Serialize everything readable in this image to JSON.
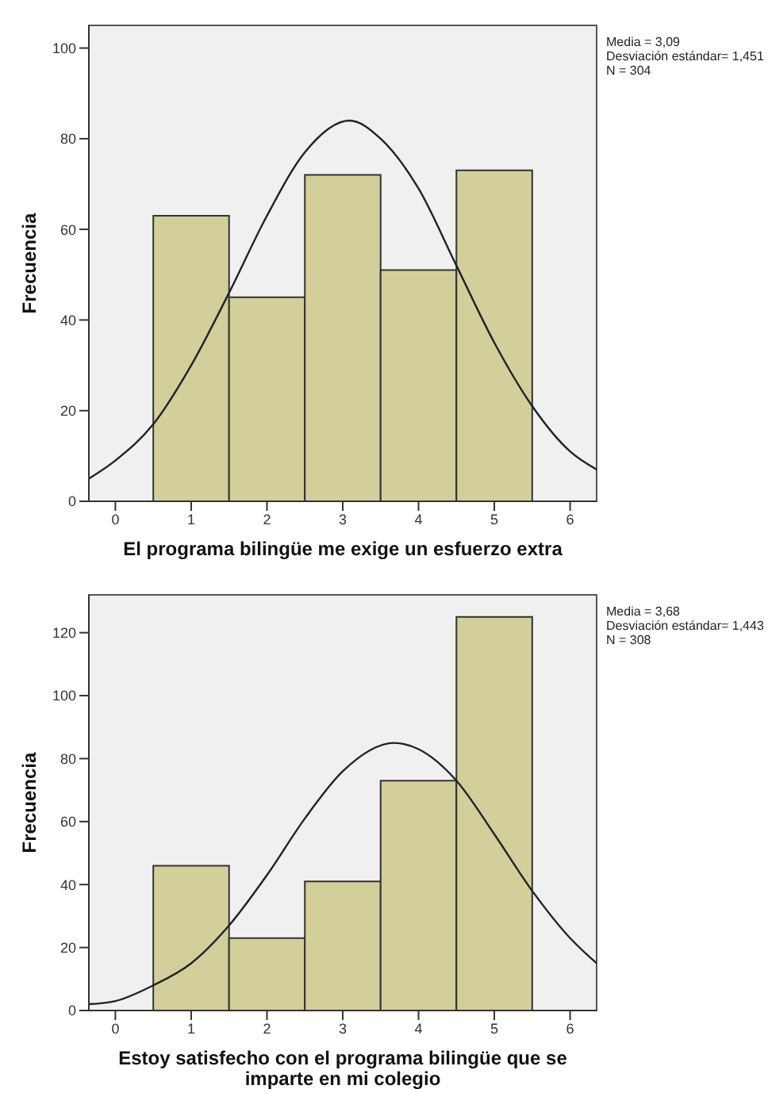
{
  "chart_data": [
    {
      "type": "histogram",
      "xlabel": "El programa bilingüe me exige un esfuerzo extra",
      "ylabel": "Frecuencia",
      "bins": [
        0.5,
        1.5,
        2.5,
        3.5,
        4.5,
        5.5
      ],
      "xlim": [
        -0.35,
        6.35
      ],
      "xticks": [
        0,
        1,
        2,
        3,
        4,
        5,
        6
      ],
      "ylim": [
        0,
        105
      ],
      "yticks": [
        0,
        20,
        40,
        60,
        80,
        100
      ],
      "legend": false,
      "annotations": [
        "Media = 3,09",
        "Desviación estándar= 1,451",
        "N = 304"
      ],
      "series": [
        {
          "color": "#d3cf9b",
          "values": [
            63,
            45,
            72,
            51,
            73
          ]
        },
        {
          "type": "line",
          "color": "#222222",
          "x": [
            -0.35,
            0,
            0.5,
            1,
            1.5,
            2,
            2.5,
            3.09,
            3.5,
            4,
            4.5,
            5,
            5.5,
            6,
            6.35
          ],
          "values": [
            5,
            9,
            17,
            30,
            46,
            63,
            77,
            84,
            80,
            69,
            52,
            35,
            21,
            11,
            7
          ]
        }
      ]
    },
    {
      "type": "histogram",
      "xlabel": "Estoy satisfecho con el programa bilingüe que se imparte en mi colegio",
      "ylabel": "Frecuencia",
      "bins": [
        0.5,
        1.5,
        2.5,
        3.5,
        4.5,
        5.5
      ],
      "xlim": [
        -0.35,
        6.35
      ],
      "xticks": [
        0,
        1,
        2,
        3,
        4,
        5,
        6
      ],
      "ylim": [
        0,
        132
      ],
      "yticks": [
        0,
        20,
        40,
        60,
        80,
        100,
        120
      ],
      "legend": false,
      "annotations": [
        "Media = 3,68",
        "Desviación estándar= 1,443",
        "N = 308"
      ],
      "series": [
        {
          "color": "#d3cf9b",
          "values": [
            46,
            23,
            41,
            73,
            125
          ]
        },
        {
          "type": "line",
          "color": "#222222",
          "x": [
            -0.35,
            0,
            0.5,
            1,
            1.5,
            2,
            2.5,
            3,
            3.68,
            4,
            4.5,
            5,
            5.5,
            6,
            6.35
          ],
          "values": [
            2,
            3,
            8,
            15,
            27,
            43,
            61,
            76,
            85,
            83,
            73,
            56,
            38,
            23,
            15
          ]
        }
      ]
    }
  ]
}
